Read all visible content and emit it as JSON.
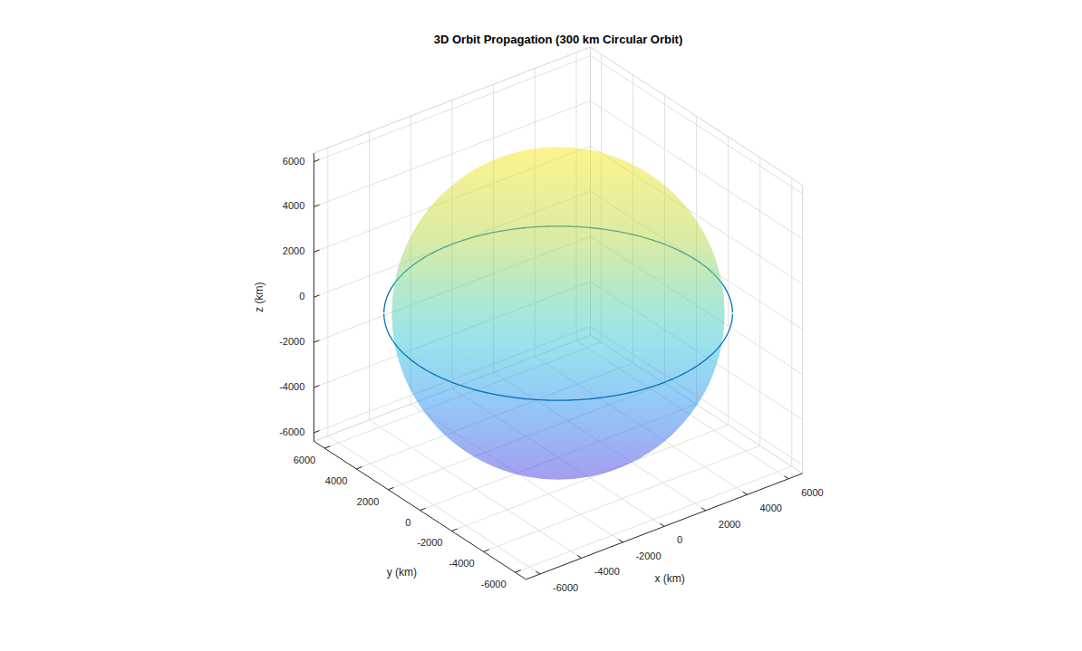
{
  "chart_data": {
    "type": "surface3d",
    "title": "3D Orbit Propagation (300 km Circular Orbit)",
    "x_label": "x (km)",
    "y_label": "y (km)",
    "z_label": "z (km)",
    "xlim": [
      -6678,
      6678
    ],
    "ylim": [
      -6678,
      6678
    ],
    "zlim": [
      -6378,
      6378
    ],
    "xticks": [
      -6000,
      -4000,
      -2000,
      0,
      2000,
      4000,
      6000
    ],
    "yticks": [
      -6000,
      -4000,
      -2000,
      0,
      2000,
      4000,
      6000
    ],
    "zticks": [
      -6000,
      -4000,
      -2000,
      0,
      2000,
      4000,
      6000
    ],
    "grid": true,
    "sphere_radius": 6378,
    "orbit_radius": 6678
  }
}
